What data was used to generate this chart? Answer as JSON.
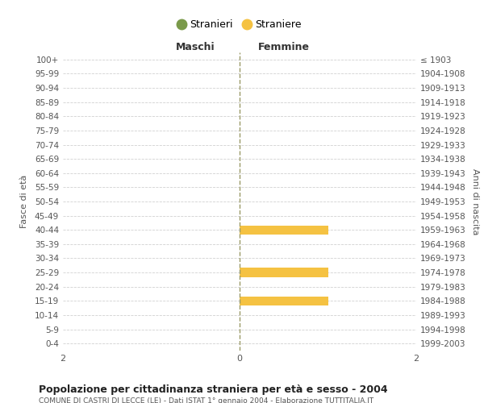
{
  "age_groups": [
    "100+",
    "95-99",
    "90-94",
    "85-89",
    "80-84",
    "75-79",
    "70-74",
    "65-69",
    "60-64",
    "55-59",
    "50-54",
    "45-49",
    "40-44",
    "35-39",
    "30-34",
    "25-29",
    "20-24",
    "15-19",
    "10-14",
    "5-9",
    "0-4"
  ],
  "birth_years": [
    "≤ 1903",
    "1904-1908",
    "1909-1913",
    "1914-1918",
    "1919-1923",
    "1924-1928",
    "1929-1933",
    "1934-1938",
    "1939-1943",
    "1944-1948",
    "1949-1953",
    "1954-1958",
    "1959-1963",
    "1964-1968",
    "1969-1973",
    "1974-1978",
    "1979-1983",
    "1984-1988",
    "1989-1993",
    "1994-1998",
    "1999-2003"
  ],
  "males_stranieri": [
    0,
    0,
    0,
    0,
    0,
    0,
    0,
    0,
    0,
    0,
    0,
    0,
    0,
    0,
    0,
    0,
    0,
    0,
    0,
    0,
    0
  ],
  "females_straniere": [
    0,
    0,
    0,
    0,
    0,
    0,
    0,
    0,
    0,
    0,
    0,
    0,
    1,
    0,
    0,
    1,
    0,
    1,
    0,
    0,
    0
  ],
  "color_males": "#7a9a4a",
  "color_females": "#f5c242",
  "xlim": 2,
  "title": "Popolazione per cittadinanza straniera per età e sesso - 2004",
  "subtitle": "COMUNE DI CASTRI DI LECCE (LE) - Dati ISTAT 1° gennaio 2004 - Elaborazione TUTTITALIA.IT",
  "ylabel_left": "Fasce di età",
  "ylabel_right": "Anni di nascita",
  "header_left": "Maschi",
  "header_right": "Femmine",
  "legend_stranieri": "Stranieri",
  "legend_straniere": "Straniere",
  "background_color": "#ffffff",
  "grid_color": "#cccccc"
}
